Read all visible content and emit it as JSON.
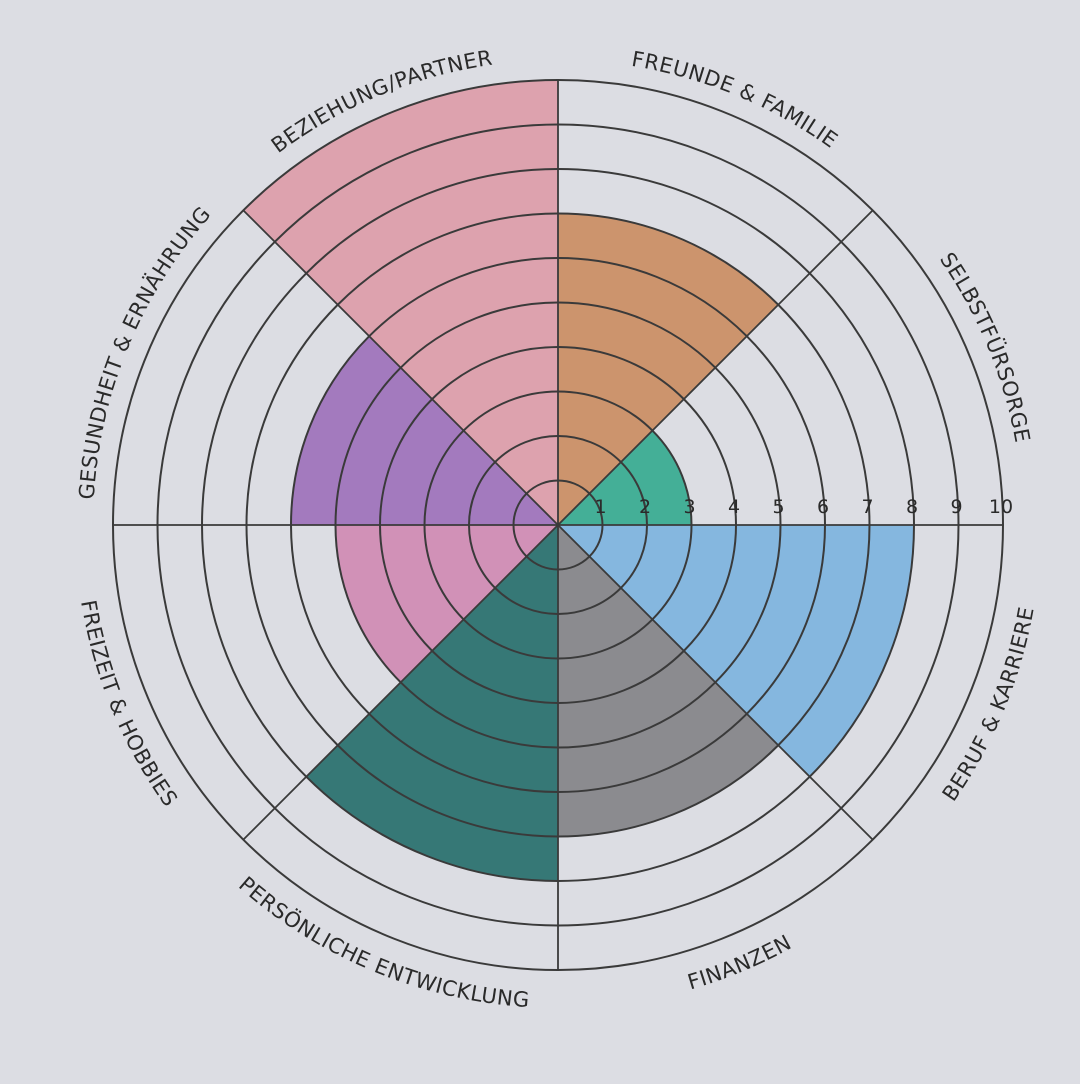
{
  "chart_data": {
    "type": "polar-area",
    "title": "",
    "scale": {
      "min": 0,
      "max": 10,
      "ticks": [
        1,
        2,
        3,
        4,
        5,
        6,
        7,
        8,
        9,
        10
      ]
    },
    "segments": [
      {
        "label": "FREUNDE & FAMILIE",
        "value": 7,
        "color": "#c98a5c"
      },
      {
        "label": "SELBSTFÜRSORGE",
        "value": 3,
        "color": "#2fa88c"
      },
      {
        "label": "BERUF & KARRIERE",
        "value": 8,
        "color": "#79b2de"
      },
      {
        "label": "FINANZEN",
        "value": 7,
        "color": "#7f7f83"
      },
      {
        "label": "PERSÖNLICHE ENTWICKLUNG",
        "value": 8,
        "color": "#1f6a66"
      },
      {
        "label": "FREIZEIT & HOBBIES",
        "value": 5,
        "color": "#cf86b0"
      },
      {
        "label": "GESUNDHEIT & ERNÄHRUNG",
        "value": 6,
        "color": "#9b6cb8"
      },
      {
        "label": "BEZIEHUNG/PARTNER",
        "value": 10,
        "color": "#dd9aa6"
      }
    ],
    "grid": true,
    "line_color": "#3a3a3a",
    "paper_color": "#dcdde3"
  }
}
